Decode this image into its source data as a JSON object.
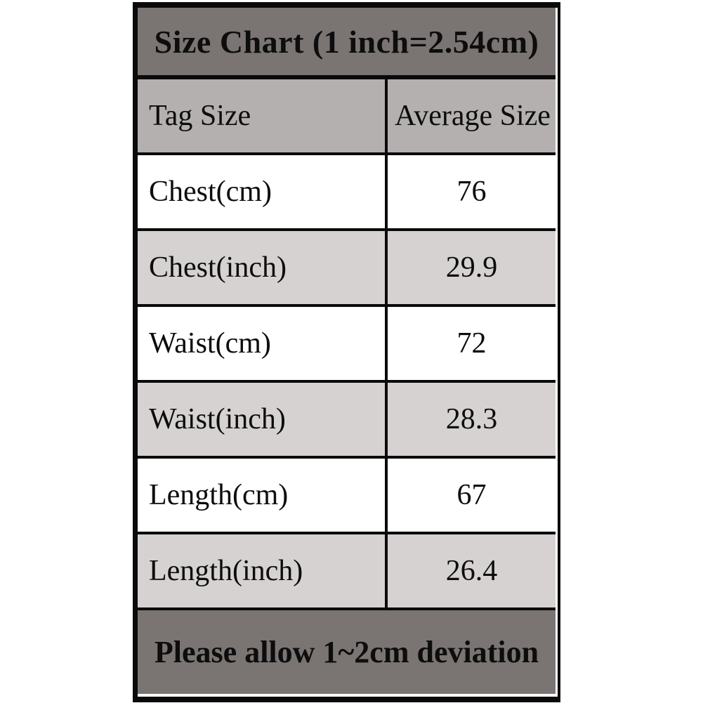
{
  "table": {
    "title": "Size Chart (1 inch=2.54cm)",
    "columns": {
      "left": "Tag Size",
      "right": "Average Size"
    },
    "rows": [
      {
        "label": "Chest(cm)",
        "value": "76"
      },
      {
        "label": "Chest(inch)",
        "value": "29.9"
      },
      {
        "label": "Waist(cm)",
        "value": "72"
      },
      {
        "label": "Waist(inch)",
        "value": "28.3"
      },
      {
        "label": "Length(cm)",
        "value": "67"
      },
      {
        "label": "Length(inch)",
        "value": "26.4"
      }
    ],
    "footer_note": "Please allow 1~2cm deviation"
  },
  "colors": {
    "title_bg": "#7a7473",
    "header_bg": "#b4b0af",
    "row_white_bg": "#ffffff",
    "row_gray_bg": "#d5d2d1",
    "border": "#0a0a0a",
    "text": "#0d0d0d",
    "page_bg": "#ffffff"
  }
}
